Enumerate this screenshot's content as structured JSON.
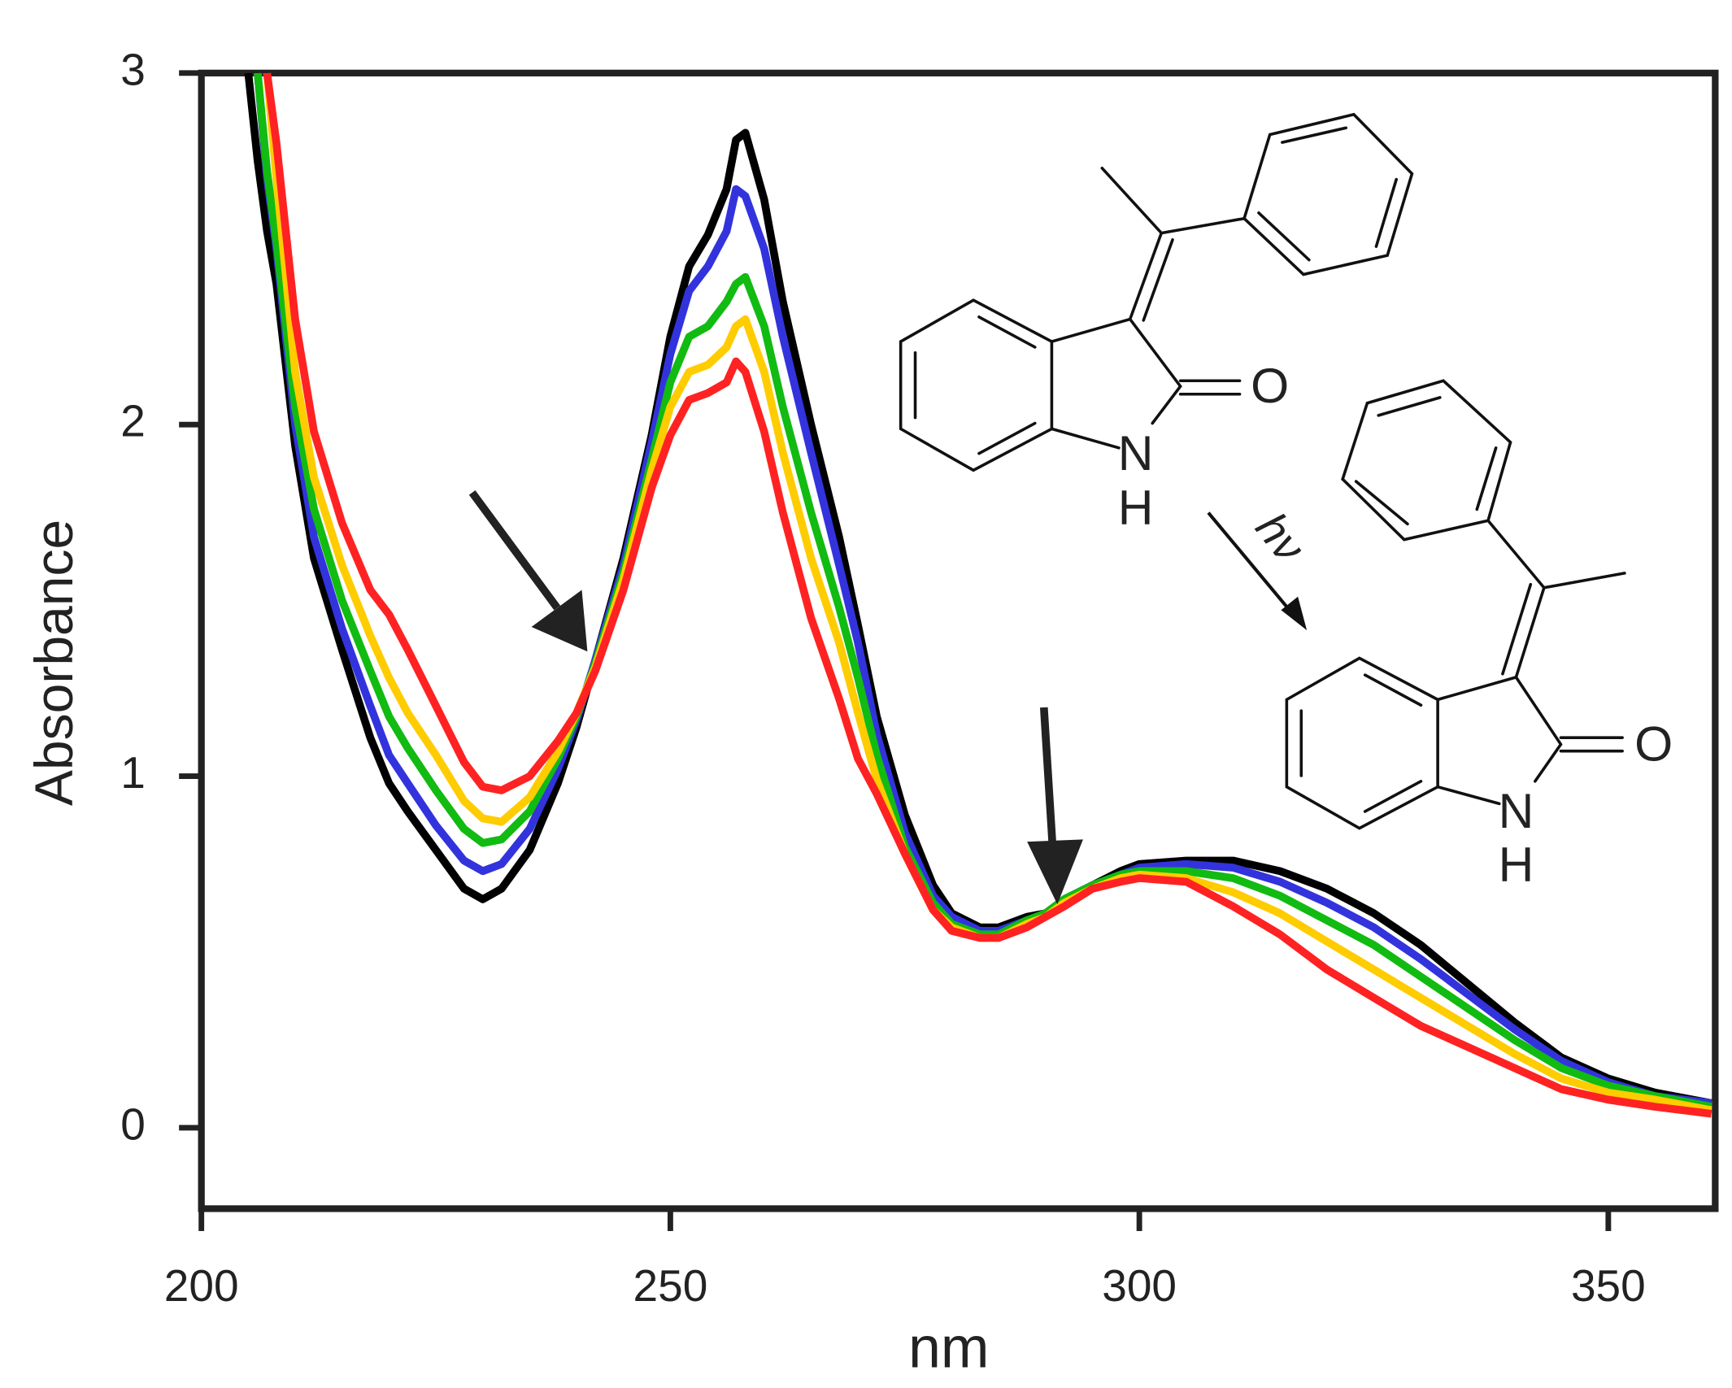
{
  "chart_data": {
    "type": "line",
    "x_label": "nm",
    "y_label": "Absorbance",
    "x": [
      205,
      206,
      207,
      208,
      210,
      212,
      215,
      218,
      220,
      222,
      225,
      228,
      230,
      232,
      235,
      238,
      240,
      242,
      245,
      248,
      250,
      252,
      254,
      256,
      257,
      258,
      260,
      262,
      265,
      268,
      270,
      272,
      275,
      278,
      280,
      283,
      285,
      288,
      290,
      292,
      295,
      298,
      300,
      305,
      310,
      315,
      320,
      325,
      330,
      335,
      340,
      345,
      350,
      355,
      361
    ],
    "series": [
      {
        "color": "#000000",
        "values": [
          3.0,
          2.75,
          2.55,
          2.4,
          1.94,
          1.62,
          1.36,
          1.11,
          0.98,
          0.9,
          0.79,
          0.68,
          0.65,
          0.68,
          0.79,
          0.98,
          1.14,
          1.33,
          1.62,
          1.97,
          2.25,
          2.45,
          2.54,
          2.67,
          2.81,
          2.83,
          2.64,
          2.35,
          2.0,
          1.68,
          1.43,
          1.17,
          0.89,
          0.69,
          0.61,
          0.57,
          0.57,
          0.6,
          0.61,
          0.65,
          0.69,
          0.73,
          0.75,
          0.76,
          0.76,
          0.73,
          0.68,
          0.61,
          0.52,
          0.41,
          0.3,
          0.2,
          0.14,
          0.1,
          0.07
        ]
      },
      {
        "color": "#3333dd",
        "values": [
          null,
          3.0,
          2.7,
          2.5,
          2.0,
          1.68,
          1.42,
          1.2,
          1.06,
          0.98,
          0.86,
          0.76,
          0.73,
          0.75,
          0.85,
          1.02,
          1.16,
          1.33,
          1.6,
          1.95,
          2.2,
          2.38,
          2.45,
          2.55,
          2.67,
          2.65,
          2.5,
          2.25,
          1.92,
          1.6,
          1.38,
          1.12,
          0.84,
          0.66,
          0.6,
          0.56,
          0.56,
          0.59,
          0.61,
          0.65,
          0.69,
          0.72,
          0.74,
          0.75,
          0.74,
          0.7,
          0.64,
          0.57,
          0.48,
          0.38,
          0.28,
          0.19,
          0.13,
          0.09,
          0.07
        ]
      },
      {
        "color": "#11bb11",
        "values": [
          null,
          3.0,
          2.72,
          2.52,
          2.05,
          1.76,
          1.5,
          1.3,
          1.17,
          1.08,
          0.96,
          0.85,
          0.81,
          0.82,
          0.9,
          1.05,
          1.17,
          1.32,
          1.58,
          1.9,
          2.12,
          2.25,
          2.28,
          2.35,
          2.4,
          2.42,
          2.28,
          2.05,
          1.75,
          1.48,
          1.28,
          1.06,
          0.8,
          0.64,
          0.58,
          0.55,
          0.55,
          0.59,
          0.61,
          0.65,
          0.69,
          0.72,
          0.73,
          0.73,
          0.71,
          0.66,
          0.59,
          0.52,
          0.43,
          0.34,
          0.25,
          0.17,
          0.12,
          0.09,
          0.06
        ]
      },
      {
        "color": "#ffcc00",
        "values": [
          null,
          null,
          3.0,
          2.7,
          2.15,
          1.85,
          1.6,
          1.4,
          1.28,
          1.18,
          1.06,
          0.93,
          0.88,
          0.87,
          0.94,
          1.07,
          1.18,
          1.31,
          1.56,
          1.87,
          2.05,
          2.15,
          2.17,
          2.22,
          2.28,
          2.3,
          2.15,
          1.92,
          1.62,
          1.38,
          1.18,
          0.99,
          0.78,
          0.62,
          0.57,
          0.54,
          0.54,
          0.58,
          0.6,
          0.64,
          0.68,
          0.71,
          0.72,
          0.71,
          0.67,
          0.61,
          0.53,
          0.45,
          0.37,
          0.29,
          0.21,
          0.14,
          0.1,
          0.08,
          0.05
        ]
      },
      {
        "color": "#ff2222",
        "values": [
          null,
          null,
          3.0,
          2.8,
          2.3,
          1.98,
          1.72,
          1.53,
          1.46,
          1.36,
          1.2,
          1.04,
          0.97,
          0.96,
          1.0,
          1.1,
          1.18,
          1.3,
          1.53,
          1.82,
          1.97,
          2.07,
          2.09,
          2.12,
          2.18,
          2.15,
          1.98,
          1.75,
          1.45,
          1.22,
          1.05,
          0.95,
          0.78,
          0.62,
          0.56,
          0.54,
          0.54,
          0.57,
          0.6,
          0.63,
          0.68,
          0.7,
          0.71,
          0.7,
          0.63,
          0.55,
          0.45,
          0.37,
          0.29,
          0.23,
          0.17,
          0.11,
          0.08,
          0.06,
          0.04
        ]
      }
    ],
    "xlim": [
      200,
      361.4
    ],
    "ylim": [
      -0.23,
      3
    ],
    "xticks": [
      200,
      250,
      300,
      350
    ],
    "yticks": [
      0,
      1,
      2,
      3
    ],
    "line_width": 7,
    "structure_labels": [
      "O",
      "N",
      "H",
      "hν",
      "O",
      "N",
      "H"
    ]
  }
}
